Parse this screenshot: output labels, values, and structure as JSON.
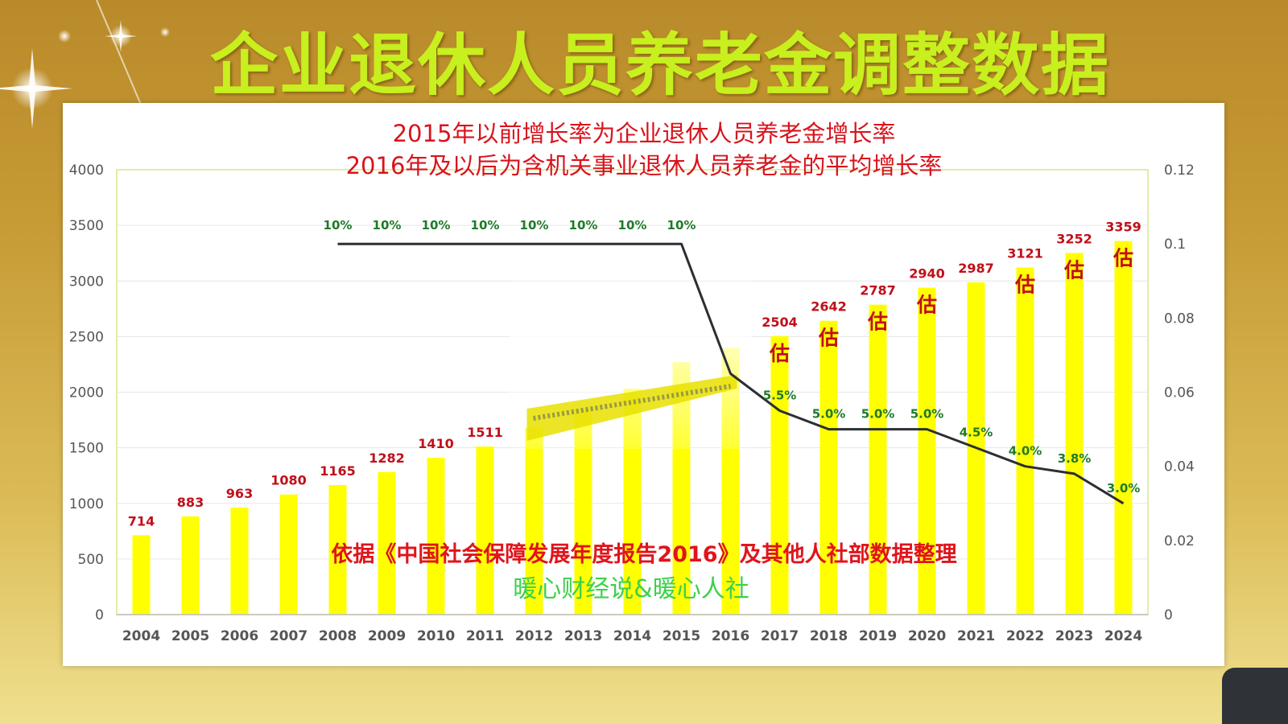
{
  "title": "企业退休人员养老金调整数据",
  "chart_data": {
    "type": "bar",
    "subtitle_lines": [
      "2015年以前增长率为企业退休人员养老金增长率",
      "2016年及以后为含机关事业退休人员养老金的平均增长率"
    ],
    "categories": [
      "2004",
      "2005",
      "2006",
      "2007",
      "2008",
      "2009",
      "2010",
      "2011",
      "2012",
      "2013",
      "2014",
      "2015",
      "2016",
      "2017",
      "2018",
      "2019",
      "2020",
      "2021",
      "2022",
      "2023",
      "2024"
    ],
    "series": [
      {
        "type": "bar",
        "axis": "left",
        "values": [
          714,
          883,
          963,
          1080,
          1165,
          1282,
          1410,
          1511,
          1680,
          1845,
          2030,
          2270,
          2400,
          2504,
          2642,
          2787,
          2940,
          2987,
          3121,
          3252,
          3359
        ],
        "labels": [
          "714",
          "883",
          "963",
          "1080",
          "1165",
          "1282",
          "1410",
          "1511",
          "",
          "",
          "",
          "",
          "",
          "2504",
          "2642",
          "2787",
          "2940",
          "2987",
          "3121",
          "3252",
          "3359"
        ],
        "estimate_marks": [
          "",
          "",
          "",
          "",
          "",
          "",
          "",
          "",
          "",
          "",
          "",
          "",
          "",
          "估",
          "估",
          "估",
          "估",
          "",
          "估",
          "估",
          "估"
        ]
      },
      {
        "type": "line",
        "axis": "right",
        "x": [
          "2008",
          "2009",
          "2010",
          "2011",
          "2012",
          "2013",
          "2014",
          "2015",
          "2016",
          "2017",
          "2018",
          "2019",
          "2020",
          "2021",
          "2022",
          "2023",
          "2024"
        ],
        "values": [
          0.1,
          0.1,
          0.1,
          0.1,
          0.1,
          0.1,
          0.1,
          0.1,
          0.065,
          0.055,
          0.05,
          0.05,
          0.05,
          0.045,
          0.04,
          0.038,
          0.03
        ],
        "labels": [
          "10%",
          "10%",
          "10%",
          "10%",
          "10%",
          "10%",
          "10%",
          "10%",
          "",
          "5.5%",
          "5.0%",
          "5.0%",
          "5.0%",
          "4.5%",
          "4.0%",
          "3.8%",
          "3.0%"
        ]
      }
    ],
    "y_left": {
      "min": 0,
      "max": 4000,
      "ticks": [
        "0",
        "500",
        "1000",
        "1500",
        "2000",
        "2500",
        "3000",
        "3500",
        "4000"
      ]
    },
    "y_right": {
      "min": 0,
      "max": 0.12,
      "ticks": [
        "0",
        "0.02",
        "0.04",
        "0.06",
        "0.08",
        "0.1",
        "0.12"
      ]
    },
    "grid": true,
    "colors": {
      "bar": "#ffff00",
      "line": "#2b2f33",
      "bar_label": "#c0101a",
      "line_label": "#1f7a2a",
      "subtitle": "#d8141c",
      "source": "#e0141c",
      "watermark": "#3dd14a",
      "title": "#c8ef1e"
    },
    "source_note": "依据《中国社会保障发展年度报告2016》及其他人社部数据整理",
    "watermark": "暖心财经说&暖心人社"
  }
}
